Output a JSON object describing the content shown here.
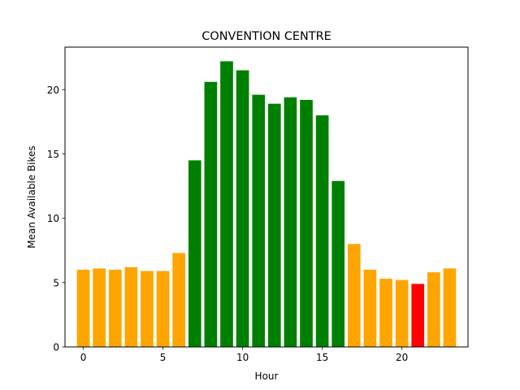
{
  "chart_data": {
    "type": "bar",
    "title": "CONVENTION CENTRE",
    "xlabel": "Hour",
    "ylabel": "Mean Available Bikes",
    "categories": [
      0,
      1,
      2,
      3,
      4,
      5,
      6,
      7,
      8,
      9,
      10,
      11,
      12,
      13,
      14,
      15,
      16,
      17,
      18,
      19,
      20,
      21,
      22,
      23
    ],
    "values": [
      6.0,
      6.1,
      6.0,
      6.2,
      5.9,
      5.9,
      7.3,
      14.5,
      20.6,
      22.2,
      21.5,
      19.6,
      18.9,
      19.4,
      19.2,
      18.0,
      12.9,
      8.0,
      6.0,
      5.3,
      5.2,
      4.9,
      5.8,
      6.1
    ],
    "bar_colors": [
      "#ffa500",
      "#ffa500",
      "#ffa500",
      "#ffa500",
      "#ffa500",
      "#ffa500",
      "#ffa500",
      "#008000",
      "#008000",
      "#008000",
      "#008000",
      "#008000",
      "#008000",
      "#008000",
      "#008000",
      "#008000",
      "#008000",
      "#ffa500",
      "#ffa500",
      "#ffa500",
      "#ffa500",
      "#ff0000",
      "#ffa500",
      "#ffa500"
    ],
    "xlim": [
      -1.15,
      24.15
    ],
    "ylim": [
      0,
      23.3
    ],
    "xticks": [
      0,
      5,
      10,
      15,
      20
    ],
    "yticks": [
      0,
      5,
      10,
      15,
      20
    ],
    "grid": false
  }
}
